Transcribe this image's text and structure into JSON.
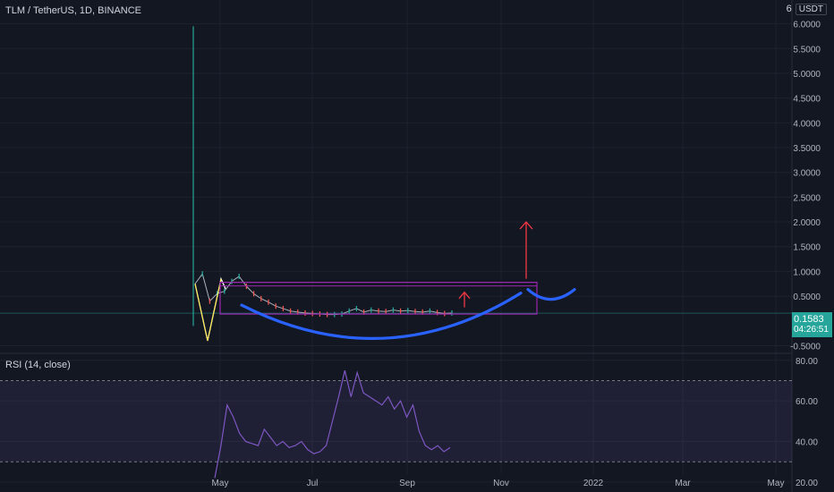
{
  "header": {
    "symbol": "TLM / TetherUS, 1D, BINANCE",
    "currency_count": "6",
    "currency": "USDT"
  },
  "price_tag": {
    "price": "0.1583",
    "countdown": "04:26:51",
    "color": "#26a69a"
  },
  "rsi_panel": {
    "title": "RSI (14, close)"
  },
  "colors": {
    "background": "#131722",
    "rsi_line": "#7e57c2",
    "cup_curve": "#2962ff",
    "target_arrow": "#f23645",
    "channel": "#9c27b0"
  },
  "chart_data": [
    {
      "type": "line",
      "title": "TLM / TetherUS, 1D, BINANCE",
      "yaxis_position": "right",
      "y_ticks": [
        "6.0000",
        "5.5000",
        "5.0000",
        "4.5000",
        "4.0000",
        "3.5000",
        "3.0000",
        "2.5000",
        "2.0000",
        "1.5000",
        "1.0000",
        "0.5000",
        "-0.5000"
      ],
      "y_tick_values": [
        6.0,
        5.5,
        5.0,
        4.5,
        4.0,
        3.5,
        3.0,
        2.5,
        2.0,
        1.5,
        1.0,
        0.5,
        -0.5
      ],
      "x_ticks": [
        "May",
        "Jul",
        "Sep",
        "Nov",
        "2022",
        "Mar",
        "May"
      ],
      "ylim": [
        -0.6,
        6.3
      ],
      "series": [
        {
          "values": [
            0.75,
            0.95,
            0.4,
            0.55,
            0.6,
            0.8,
            0.9,
            0.7,
            0.55,
            0.45,
            0.38,
            0.3,
            0.25,
            0.2,
            0.18,
            0.16,
            0.15,
            0.14,
            0.13,
            0.13,
            0.14,
            0.2,
            0.25,
            0.18,
            0.22,
            0.2,
            0.19,
            0.22,
            0.2,
            0.21,
            0.19,
            0.18,
            0.2,
            0.17,
            0.15,
            0.16
          ]
        }
      ],
      "spike": {
        "high": 5.95,
        "low": -0.1
      },
      "annotations": {
        "resistance_level": 0.78,
        "support_level": 0.14,
        "cup_low": -0.6,
        "arrow_small_top": 0.58,
        "arrow_big_top": 2.0
      },
      "last_price": 0.1583
    },
    {
      "type": "line",
      "title": "RSI (14, close)",
      "y_ticks": [
        "80.00",
        "60.00",
        "40.00",
        "20.00"
      ],
      "y_tick_values": [
        80,
        60,
        40,
        20
      ],
      "ylim": [
        16,
        83
      ],
      "band": [
        30,
        70
      ],
      "series": [
        {
          "values": [
            22,
            38,
            58,
            52,
            44,
            40,
            39,
            38,
            46,
            42,
            38,
            40,
            37,
            38,
            40,
            36,
            34,
            35,
            38,
            50,
            62,
            75,
            62,
            74,
            64,
            62,
            60,
            58,
            62,
            56,
            60,
            52,
            58,
            45,
            38,
            36,
            38,
            35,
            37
          ]
        }
      ]
    }
  ]
}
